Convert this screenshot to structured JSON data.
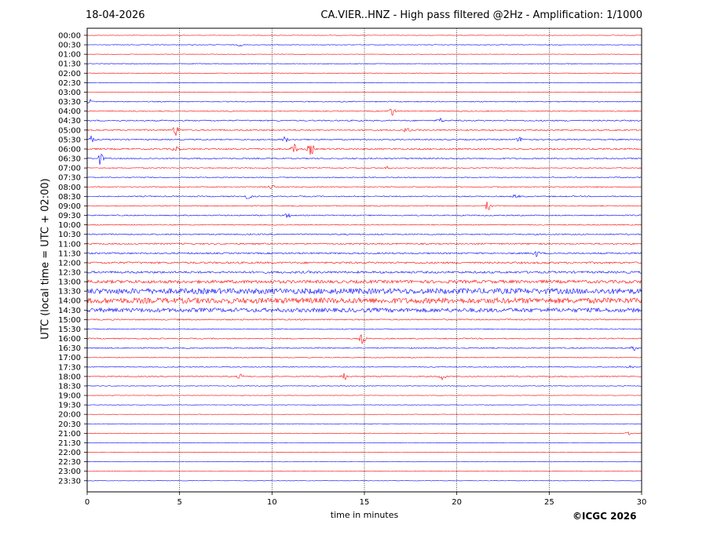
{
  "header": {
    "date": "18-04-2026",
    "title": "CA.VIER..HNZ - High pass filtered @2Hz - Amplification: 1/1000"
  },
  "footer": {
    "copyright": "©ICGC 2026"
  },
  "chart_data": {
    "type": "line",
    "title": "CA.VIER..HNZ - High pass filtered @2Hz - Amplification: 1/1000",
    "xlabel": "time in minutes",
    "ylabel": "UTC (local time = UTC + 02:00)",
    "xlim": [
      0,
      30
    ],
    "x_ticks": [
      "0",
      "5",
      "10",
      "15",
      "20",
      "25",
      "30"
    ],
    "y_ticks": [
      "00:00",
      "00:30",
      "01:00",
      "01:30",
      "02:00",
      "02:30",
      "03:00",
      "03:30",
      "04:00",
      "04:30",
      "05:00",
      "05:30",
      "06:00",
      "06:30",
      "07:00",
      "07:30",
      "08:00",
      "08:30",
      "09:00",
      "09:30",
      "10:00",
      "10:30",
      "11:00",
      "11:30",
      "12:00",
      "12:30",
      "13:00",
      "13:30",
      "14:00",
      "14:30",
      "15:00",
      "15:30",
      "16:00",
      "16:30",
      "17:00",
      "17:30",
      "18:00",
      "18:30",
      "19:00",
      "19:30",
      "20:00",
      "20:30",
      "21:00",
      "21:30",
      "22:00",
      "22:30",
      "23:00",
      "23:30"
    ],
    "vertical_gridlines_at": [
      5,
      10,
      15,
      20,
      25
    ],
    "trace_colors": [
      "#ff0000",
      "#0000ff"
    ],
    "noise_level_by_row": [
      0.3,
      0.4,
      0.3,
      0.5,
      0.4,
      0.3,
      0.3,
      0.6,
      0.6,
      0.8,
      0.9,
      0.8,
      1.0,
      0.8,
      0.6,
      0.6,
      0.6,
      0.7,
      0.6,
      0.7,
      0.6,
      0.8,
      0.9,
      1.0,
      1.2,
      1.4,
      2.0,
      3.5,
      3.5,
      2.6,
      0.8,
      0.6,
      0.7,
      0.7,
      0.5,
      0.5,
      0.7,
      0.4,
      0.3,
      0.3,
      0.3,
      0.3,
      0.3,
      0.3,
      0.3,
      0.3,
      0.3,
      0.3
    ],
    "events": [
      {
        "row": "00:30",
        "minute": 8.3,
        "amplitude": 2
      },
      {
        "row": "03:30",
        "minute": 0.1,
        "amplitude": 3
      },
      {
        "row": "04:00",
        "minute": 16.5,
        "amplitude": 6
      },
      {
        "row": "04:30",
        "minute": 19.1,
        "amplitude": 3
      },
      {
        "row": "05:00",
        "minute": 4.8,
        "amplitude": 7
      },
      {
        "row": "05:00",
        "minute": 17.3,
        "amplitude": 3
      },
      {
        "row": "05:30",
        "minute": 0.2,
        "amplitude": 5
      },
      {
        "row": "05:30",
        "minute": 10.7,
        "amplitude": 4
      },
      {
        "row": "05:30",
        "minute": 23.4,
        "amplitude": 3
      },
      {
        "row": "06:00",
        "minute": 4.8,
        "amplitude": 4
      },
      {
        "row": "06:00",
        "minute": 11.2,
        "amplitude": 6
      },
      {
        "row": "06:00",
        "minute": 12.1,
        "amplitude": 8
      },
      {
        "row": "06:30",
        "minute": 0.7,
        "amplitude": 8
      },
      {
        "row": "07:00",
        "minute": 16.2,
        "amplitude": 2
      },
      {
        "row": "08:00",
        "minute": 10.0,
        "amplitude": 3
      },
      {
        "row": "08:30",
        "minute": 8.7,
        "amplitude": 4
      },
      {
        "row": "08:30",
        "minute": 23.2,
        "amplitude": 3
      },
      {
        "row": "09:00",
        "minute": 21.7,
        "amplitude": 8
      },
      {
        "row": "09:30",
        "minute": 10.9,
        "amplitude": 4
      },
      {
        "row": "11:30",
        "minute": 24.3,
        "amplitude": 4
      },
      {
        "row": "16:00",
        "minute": 14.9,
        "amplitude": 7
      },
      {
        "row": "16:30",
        "minute": 29.6,
        "amplitude": 3
      },
      {
        "row": "17:30",
        "minute": 29.4,
        "amplitude": 3
      },
      {
        "row": "18:00",
        "minute": 8.3,
        "amplitude": 3
      },
      {
        "row": "18:00",
        "minute": 13.9,
        "amplitude": 5
      },
      {
        "row": "18:00",
        "minute": 19.2,
        "amplitude": 5
      },
      {
        "row": "21:00",
        "minute": 29.3,
        "amplitude": 2
      }
    ],
    "grid": true,
    "legend": "none"
  }
}
